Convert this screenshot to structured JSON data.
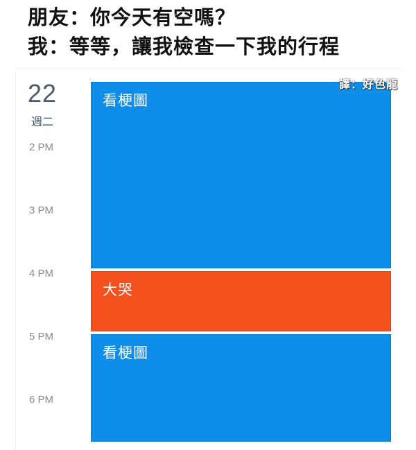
{
  "caption": {
    "line1": "朋友：你今天有空嗎？",
    "line2": "我：等等，讓我檢查一下我的行程"
  },
  "calendar": {
    "day_number": "22",
    "weekday": "週二",
    "hours": [
      "2 PM",
      "3 PM",
      "4 PM",
      "5 PM",
      "6 PM"
    ],
    "events": [
      {
        "title": "看梗圖",
        "color": "#0e8ee9"
      },
      {
        "title": "大哭",
        "color": "#f4511e"
      },
      {
        "title": "看梗圖",
        "color": "#0e8ee9"
      }
    ]
  },
  "watermark": "譯：好色龍"
}
